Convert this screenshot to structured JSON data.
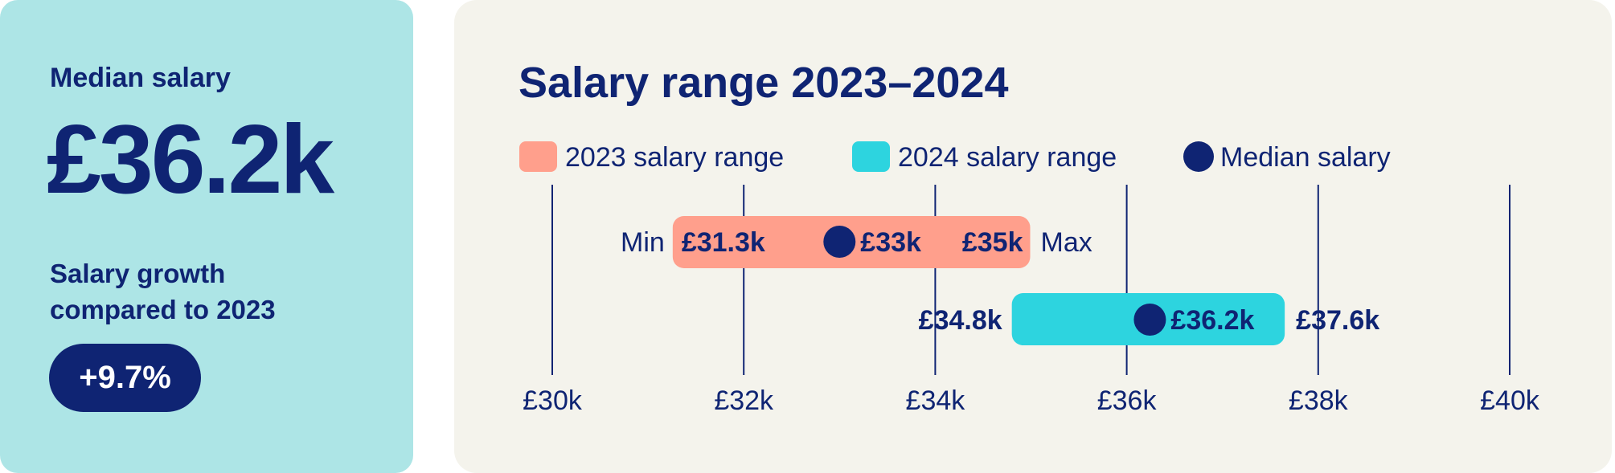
{
  "summary": {
    "median_label": "Median salary",
    "median_value": "£36.2k",
    "growth_label_line1": "Salary growth",
    "growth_label_line2": "compared to 2023",
    "growth_value": "+9.7%"
  },
  "colors": {
    "navy": "#0f2473",
    "range_2023": "#ff9f8c",
    "range_2024": "#2dd4df"
  },
  "chart_data": {
    "type": "range-bar",
    "title": "Salary range 2023–2024",
    "legend": [
      {
        "label": "2023 salary range",
        "color": "#ff9f8c",
        "shape": "square"
      },
      {
        "label": "2024 salary range",
        "color": "#2dd4df",
        "shape": "square"
      },
      {
        "label": "Median salary",
        "color": "#0f2473",
        "shape": "circle"
      }
    ],
    "xlim": [
      30,
      40
    ],
    "ticks": [
      30,
      32,
      34,
      36,
      38,
      40
    ],
    "tick_labels": [
      "£30k",
      "£32k",
      "£34k",
      "£36k",
      "£38k",
      "£40k"
    ],
    "min_label": "Min",
    "max_label": "Max",
    "series": [
      {
        "year": "2023",
        "min": 31.3,
        "median": 33,
        "max": 35,
        "min_label": "£31.3k",
        "median_label": "£33k",
        "max_label": "£35k",
        "color": "#ff9f8c"
      },
      {
        "year": "2024",
        "min": 34.8,
        "median": 36.2,
        "max": 37.6,
        "min_label": "£34.8k",
        "median_label": "£36.2k",
        "max_label": "£37.6k",
        "color": "#2dd4df"
      }
    ]
  }
}
